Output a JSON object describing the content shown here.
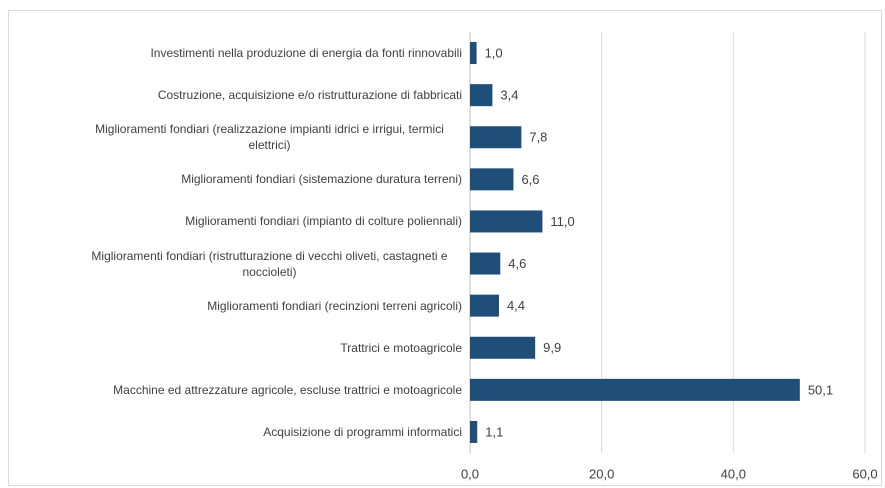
{
  "chart_data": {
    "type": "bar",
    "orientation": "horizontal",
    "color": "#1f4e79",
    "grid": true,
    "categories": [
      "Investimenti nella produzione di energia da fonti rinnovabili",
      "Costruzione, acquisizione e/o ristrutturazione di fabbricati",
      "Miglioramenti fondiari (realizzazione impianti idrici e irrigui, termici elettrici)",
      "Miglioramenti fondiari (sistemazione duratura terreni)",
      "Miglioramenti fondiari (impianto di colture poliennali)",
      "Miglioramenti fondiari (ristrutturazione di vecchi oliveti, castagneti e noccioleti)",
      "Miglioramenti fondiari (recinzioni terreni agricoli)",
      "Trattrici e motoagricole",
      "Macchine ed attrezzature agricole, escluse trattrici e motoagricole",
      "Acquisizione di programmi informatici"
    ],
    "values": [
      1.0,
      3.4,
      7.8,
      6.6,
      11.0,
      4.6,
      4.4,
      9.9,
      50.1,
      1.1
    ],
    "value_labels": [
      "1,0",
      "3,4",
      "7,8",
      "6,6",
      "11,0",
      "4,6",
      "4,4",
      "9,9",
      "50,1",
      "1,1"
    ],
    "xlim": [
      0,
      60
    ],
    "xticks": [
      {
        "value": 0,
        "label": "0,0"
      },
      {
        "value": 20,
        "label": "20,0"
      },
      {
        "value": 40,
        "label": "40,0"
      },
      {
        "value": 60,
        "label": "60,0"
      }
    ]
  }
}
